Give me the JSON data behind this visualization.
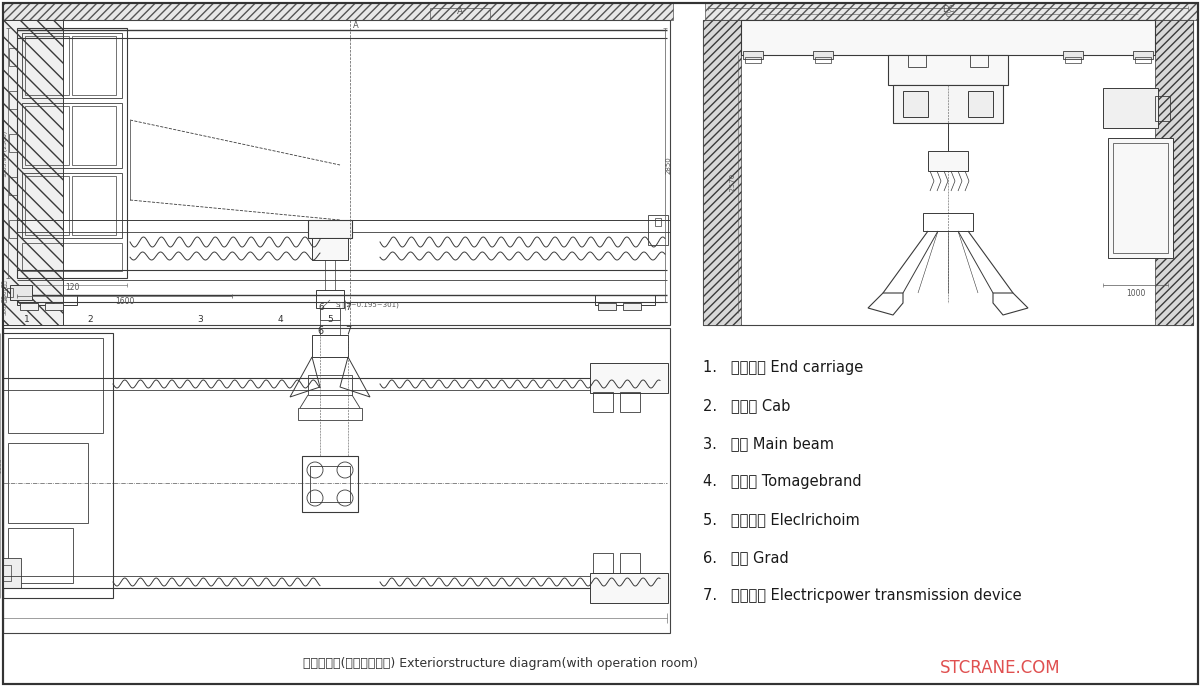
{
  "bg_color": "#ffffff",
  "line_color": "#3a3a3a",
  "dim_color": "#555555",
  "title_text": "外形结构图(安装有司机室) Exteriorstructure diagram(with operation room)",
  "watermark": "STCRANE.COM",
  "legend_items": [
    "1.   端梁装置 End carriage",
    "2.   司机室 Cab",
    "3.   主梁 Main beam",
    "4.   吨位牌 Tomagebrand",
    "5.   电动葫芦 Eleclrichoim",
    "6.   抓斗 Grad",
    "7.   输电装置 Electricpower transmission device"
  ],
  "fig_width": 12.01,
  "fig_height": 6.87,
  "dpi": 100
}
